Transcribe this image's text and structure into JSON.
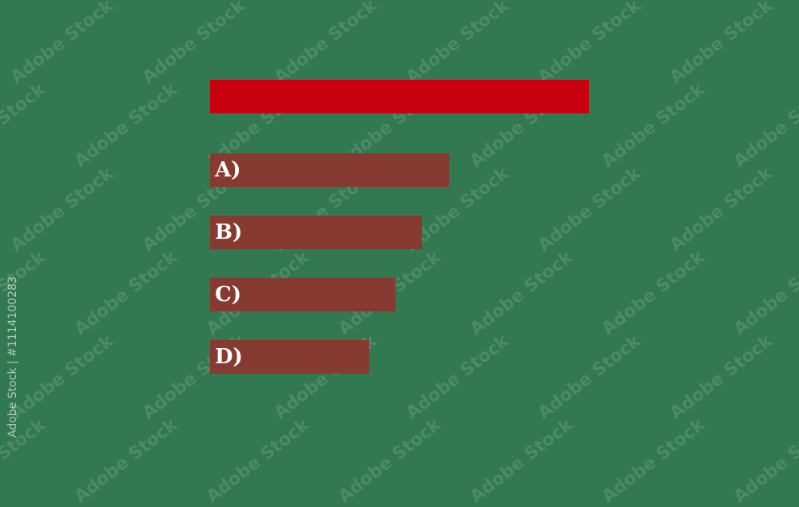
{
  "question_bar": {
    "label": "",
    "color": "#c8000f"
  },
  "options": [
    {
      "label": "A)",
      "fill": 0.63
    },
    {
      "label": "B)",
      "fill": 0.56
    },
    {
      "label": "C)",
      "fill": 0.49
    },
    {
      "label": "D)",
      "fill": 0.42
    }
  ],
  "option_color": "#873a2f",
  "background_color": "#327850",
  "watermark": "Adobe Stock",
  "side_caption": "Adobe Stock | #1114100283"
}
